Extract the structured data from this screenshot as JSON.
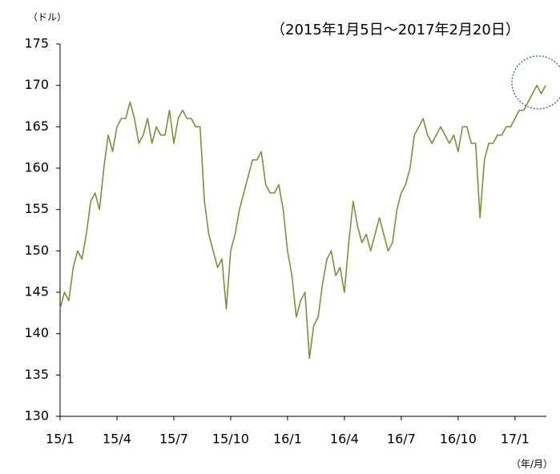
{
  "chart_data": {
    "type": "line",
    "subtitle": "（2015年1月5日～2017年2月20日）",
    "y_label": "（ドル）",
    "x_label": "（年/月）",
    "categories": [
      "15/1",
      null,
      null,
      null,
      null,
      null,
      null,
      null,
      null,
      null,
      null,
      null,
      null,
      "15/4",
      null,
      null,
      null,
      null,
      null,
      null,
      null,
      null,
      null,
      null,
      null,
      null,
      "15/7",
      null,
      null,
      null,
      null,
      null,
      null,
      null,
      null,
      null,
      null,
      null,
      null,
      "15/10",
      null,
      null,
      null,
      null,
      null,
      null,
      null,
      null,
      null,
      null,
      null,
      null,
      "16/1",
      null,
      null,
      null,
      null,
      null,
      null,
      null,
      null,
      null,
      null,
      null,
      null,
      "16/4",
      null,
      null,
      null,
      null,
      null,
      null,
      null,
      null,
      null,
      null,
      null,
      null,
      "16/7",
      null,
      null,
      null,
      null,
      null,
      null,
      null,
      null,
      null,
      null,
      null,
      null,
      "16/10",
      null,
      null,
      null,
      null,
      null,
      null,
      null,
      null,
      null,
      null,
      null,
      null,
      "17/1",
      null,
      null,
      null,
      null,
      null,
      null,
      null
    ],
    "values": [
      143,
      145,
      144,
      148,
      150,
      149,
      152,
      156,
      157,
      155,
      160,
      164,
      162,
      165,
      166,
      166,
      168,
      166,
      163,
      164,
      166,
      163,
      165,
      164,
      164,
      167,
      163,
      166,
      167,
      166,
      166,
      165,
      165,
      156,
      152,
      150,
      148,
      149,
      143,
      150,
      152,
      155,
      157,
      159,
      161,
      161,
      162,
      158,
      157,
      157,
      158,
      155,
      150,
      147,
      142,
      144,
      145,
      137,
      141,
      142,
      146,
      149,
      150,
      147,
      148,
      145,
      151,
      156,
      153,
      151,
      152,
      150,
      152,
      154,
      152,
      150,
      151,
      155,
      157,
      158,
      160,
      164,
      165,
      166,
      164,
      163,
      164,
      165,
      164,
      163,
      164,
      162,
      165,
      165,
      163,
      163,
      154,
      161,
      163,
      163,
      164,
      164,
      165,
      165,
      166,
      167,
      167,
      168,
      169,
      170,
      169,
      170
    ],
    "color": "#77933c",
    "ylim": [
      130,
      175
    ],
    "yticks": [
      130,
      135,
      140,
      145,
      150,
      155,
      160,
      165,
      170,
      175
    ],
    "grid": false
  }
}
